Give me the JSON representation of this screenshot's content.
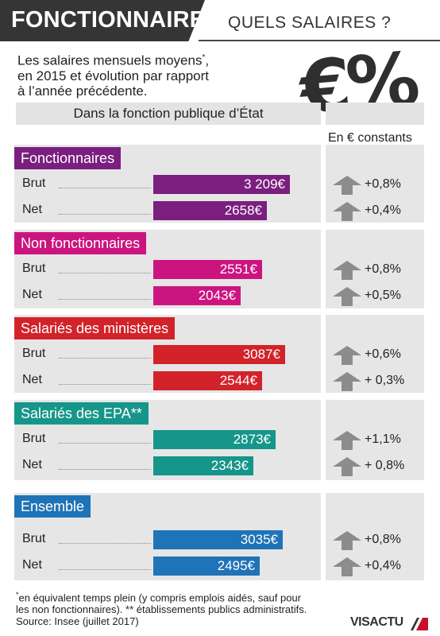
{
  "header": {
    "title": "FONCTIONNAIRES",
    "question": "QUELS SALAIRES ?"
  },
  "subtitle": {
    "line1": "Les salaires mensuels moyens",
    "line1_mark": "*",
    "line1_end": ",",
    "line2": "en 2015 et évolution par rapport",
    "line3": "à l’année précédente."
  },
  "graphic_symbol": "€%",
  "section_title": "Dans la fonction publique d’État",
  "unit_label": "En € constants",
  "colors": {
    "fonctionnaires": "#7a1f7f",
    "non_fonctionnaires": "#cc1480",
    "ministeres": "#d2232a",
    "epa": "#16968a",
    "ensemble": "#1f73b7",
    "arrow": "#8c8c8c",
    "panel": "#e6e6e6"
  },
  "chart_data": {
    "type": "bar",
    "title": "Dans la fonction publique d’État",
    "unit": "€",
    "series_types": [
      "Brut",
      "Net"
    ],
    "groups": [
      {
        "name": "Fonctionnaires",
        "rows": [
          {
            "label": "Brut",
            "value": 3209,
            "value_text": "3 209€",
            "change": "+0,8%"
          },
          {
            "label": "Net",
            "value": 2658,
            "value_text": "2658€",
            "change": "+0,4%"
          }
        ]
      },
      {
        "name": "Non fonctionnaires",
        "rows": [
          {
            "label": "Brut",
            "value": 2551,
            "value_text": "2551€",
            "change": "+0,8%"
          },
          {
            "label": "Net",
            "value": 2043,
            "value_text": "2043€",
            "change": "+0,5%"
          }
        ]
      },
      {
        "name": "Salariés des ministères",
        "rows": [
          {
            "label": "Brut",
            "value": 3087,
            "value_text": "3087€",
            "change": "+0,6%"
          },
          {
            "label": "Net",
            "value": 2544,
            "value_text": "2544€",
            "change": "+ 0,3%"
          }
        ]
      },
      {
        "name": "Salariés des EPA**",
        "rows": [
          {
            "label": "Brut",
            "value": 2873,
            "value_text": "2873€",
            "change": "+1,1%"
          },
          {
            "label": "Net",
            "value": 2343,
            "value_text": "2343€",
            "change": "+ 0,8%"
          }
        ]
      },
      {
        "name": "Ensemble",
        "rows": [
          {
            "label": "Brut",
            "value": 3035,
            "value_text": "3035€",
            "change": "+0,8%"
          },
          {
            "label": "Net",
            "value": 2495,
            "value_text": "2495€",
            "change": "+0,4%"
          }
        ]
      }
    ]
  },
  "footnote": {
    "mark": "*",
    "line1": "en équivalent temps plein (y compris emplois aidés, sauf pour",
    "line2": "les non fonctionnaires). ** établissements publics administratifs.",
    "source": "Source: Insee (juillet 2017)"
  },
  "logo": "VISACTU"
}
